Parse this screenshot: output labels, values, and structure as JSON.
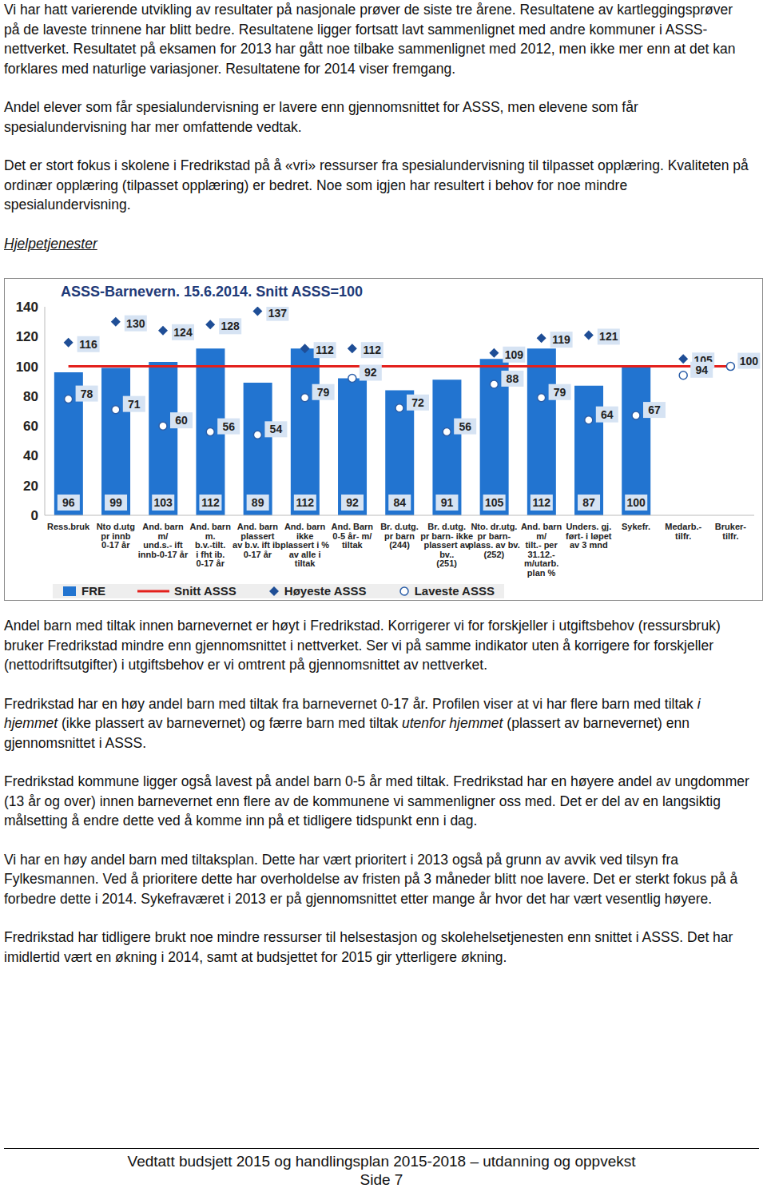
{
  "paragraphs_top": [
    [
      {
        "text": "Vi har hatt varierende utvikling av resultater på nasjonale prøver de siste tre årene. Resultatene av kartleggingsprøver på de laveste trinnene har blitt bedre. Resultatene ligger fortsatt lavt sammenlignet med andre kommuner i ASSS-nettverket. Resultatet på eksamen for 2013 har gått noe tilbake sammenlignet med 2012, men ikke mer enn at det kan forklares med naturlige variasjoner. Resultatene for 2014 viser fremgang."
      }
    ],
    [
      {
        "text": "Andel elever som får spesialundervisning er lavere enn gjennomsnittet for ASSS, men elevene som får spesialundervisning har mer omfattende vedtak."
      }
    ],
    [
      {
        "text": "Det er stort fokus i skolene i Fredrikstad på å «vri» ressurser fra spesialundervisning til tilpasset opplæring. Kvaliteten på ordinær opplæring (tilpasset opplæring) er bedret. Noe som igjen har resultert i behov for noe mindre spesialundervisning."
      }
    ]
  ],
  "section_heading": "Hjelpetjenester",
  "chart_data": {
    "type": "bar",
    "title": "ASSS-Barnevern. 15.6.2014. Snitt ASSS=100",
    "categories": [
      "Ress.bruk",
      "Nto d.utg\npr innb\n0-17 år",
      "And. barn\nm/\nund.s.- ift\ninnb-0-17 år",
      "And. barn\nm.\nb.v.-tilt.\ni fht ib.\n0-17 år",
      "And. barn\nplassert\nav b.v. ift ib.\n0-17 år",
      "And. barn\nikke\nplassert i %\nav alle i\ntiltak",
      "And. Barn\n0-5 år- m/\ntiltak",
      "Br. d.utg.\npr barn\n(244)",
      "Br. d.utg.\npr barn- ikke\nplassert av\nbv..\n(251)",
      "Nto. dr.utg.\npr barn-\nplass. av bv.\n(252)",
      "And. barn\nm/\ntilt.- per\n31.12.-\nm/utarb.\nplan %",
      "Unders. gj.\nført- i løpet\nav 3 mnd",
      "Sykefr.",
      "Medarb.-\ntilfr.",
      "Bruker-\ntilfr."
    ],
    "series": [
      {
        "name": "FRE",
        "type": "bar",
        "color": "#2274d0",
        "data_labels": true,
        "values": [
          96,
          99,
          103,
          112,
          89,
          112,
          92,
          84,
          91,
          105,
          112,
          87,
          100,
          null,
          null
        ]
      },
      {
        "name": "Snitt ASSS",
        "type": "line",
        "color": "#e3201c",
        "values": [
          100,
          100,
          100,
          100,
          100,
          100,
          100,
          100,
          100,
          100,
          100,
          100,
          100,
          100,
          100
        ]
      },
      {
        "name": "Høyeste ASSS",
        "type": "scatter",
        "marker": "diamond",
        "color": "#1f4e96",
        "data_labels": true,
        "values": [
          116,
          130,
          124,
          128,
          137,
          112,
          112,
          null,
          null,
          109,
          119,
          121,
          null,
          105,
          null
        ]
      },
      {
        "name": "Laveste ASSS",
        "type": "scatter",
        "marker": "circle",
        "color": "#2b5ea8",
        "data_labels": true,
        "values": [
          78,
          71,
          60,
          56,
          54,
          79,
          92,
          72,
          56,
          88,
          79,
          64,
          67,
          94,
          100
        ]
      }
    ],
    "ylim": [
      0,
      140
    ],
    "yticks": [
      0,
      20,
      40,
      60,
      80,
      100,
      120,
      140
    ],
    "grid": false,
    "legend": "bottom"
  },
  "paragraphs_bottom": [
    [
      {
        "text": "Andel barn med tiltak innen barnevernet er høyt i Fredrikstad. Korrigerer vi for forskjeller i utgiftsbehov (ressursbruk) bruker Fredrikstad mindre enn gjennomsnittet i nettverket. Ser vi på samme indikator uten å korrigere for forskjeller (nettodriftsutgifter) i utgiftsbehov er vi omtrent på gjennomsnittet av nettverket."
      }
    ],
    [
      {
        "text": "Fredrikstad har en høy andel barn med tiltak fra barnevernet 0-17 år. Profilen viser at vi har flere barn med tiltak "
      },
      {
        "text": "i hjemmet",
        "style": "italic"
      },
      {
        "text": " (ikke plassert av barnevernet) og færre barn med tiltak "
      },
      {
        "text": "utenfor hjemmet",
        "style": "italic"
      },
      {
        "text": " (plassert av barnevernet) enn gjennomsnittet i ASSS."
      }
    ],
    [
      {
        "text": "Fredrikstad kommune ligger også lavest på andel barn 0-5 år med tiltak. Fredrikstad har en høyere andel av ungdommer (13 år og over) innen barnevernet enn flere av de kommunene vi sammenligner oss med. Det er del av en langsiktig målsetting å endre dette ved å komme inn på et tidligere tidspunkt enn i dag."
      }
    ],
    [
      {
        "text": "Vi har en høy andel barn med tiltaksplan. Dette har vært prioritert i 2013 også på grunn av avvik ved tilsyn fra Fylkesmannen. Ved å prioritere dette har overholdelse av fristen på 3 måneder blitt noe lavere. Det er sterkt fokus på å forbedre dette i 2014. Sykefraværet i 2013 er på gjennomsnittet etter mange år hvor det har vært vesentlig høyere."
      }
    ],
    [
      {
        "text": "Fredrikstad har tidligere brukt noe mindre ressurser til helsestasjon og skolehelsetjenesten enn snittet i ASSS. Det har imidlertid vært en økning i 2014, samt at budsjettet for 2015 gir  ytterligere økning."
      }
    ]
  ],
  "footer": {
    "title": "Vedtatt budsjett 2015 og handlingsplan 2015-2018 – utdanning og oppvekst",
    "page": "Side 7"
  }
}
